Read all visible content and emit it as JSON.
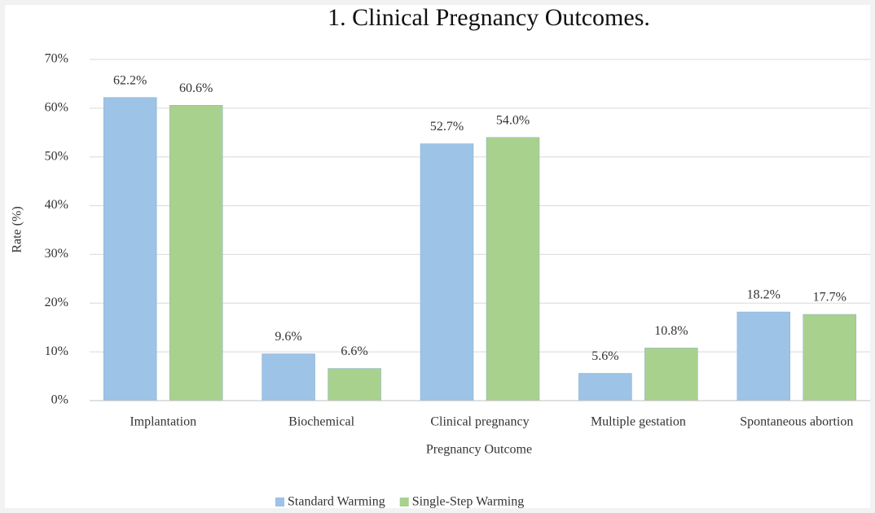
{
  "chart_data": {
    "type": "bar",
    "title": "1. Clinical Pregnancy Outcomes.",
    "x_label": "Pregnancy Outcome",
    "y_label": "Rate (%)",
    "categories": [
      "Implantation",
      "Biochemical",
      "Clinical pregnancy",
      "Multiple gestation",
      "Spontaneous abortion"
    ],
    "series": [
      {
        "name": "Standard Warming",
        "color": "#9dc3e6",
        "values": [
          62.2,
          9.6,
          52.7,
          5.6,
          18.2
        ],
        "value_labels": [
          "62.2%",
          "9.6%",
          "52.7%",
          "5.6%",
          "18.2%"
        ]
      },
      {
        "name": "Single-Step Warming",
        "color": "#a9d18e",
        "values": [
          60.6,
          6.6,
          54.0,
          10.8,
          17.7
        ],
        "value_labels": [
          "60.6%",
          "6.6%",
          "54.0%",
          "10.8%",
          "17.7%"
        ]
      }
    ],
    "ylim": [
      0,
      70
    ],
    "yticks": [
      {
        "value": 0,
        "label": "0%"
      },
      {
        "value": 10,
        "label": "10%"
      },
      {
        "value": 20,
        "label": "20%"
      },
      {
        "value": 30,
        "label": "30%"
      },
      {
        "value": 40,
        "label": "40%"
      },
      {
        "value": 50,
        "label": "50%"
      },
      {
        "value": 60,
        "label": "60%"
      },
      {
        "value": 70,
        "label": "70%"
      }
    ],
    "grid": true,
    "legend": "bottom"
  }
}
